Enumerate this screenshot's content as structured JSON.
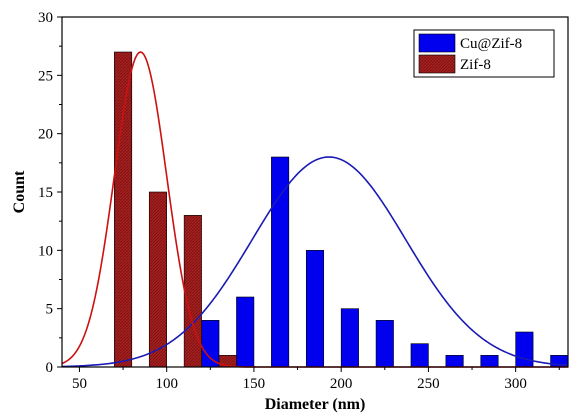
{
  "chart_data": {
    "type": "bar",
    "xlabel": "Diameter (nm)",
    "ylabel": "Count",
    "xlim": [
      40,
      330
    ],
    "ylim": [
      0,
      30
    ],
    "x_ticks": [
      50,
      100,
      150,
      200,
      250,
      300
    ],
    "y_ticks": [
      0,
      5,
      10,
      15,
      20,
      25,
      30
    ],
    "grid": false,
    "legend_position": "top-right",
    "bar_width": 10,
    "series": [
      {
        "name": "Cu@Zif-8",
        "color": "#0000ee",
        "x": [
          125,
          145,
          165,
          185,
          205,
          225,
          245,
          265,
          285,
          305,
          325
        ],
        "values": [
          4,
          6,
          18,
          10,
          5,
          4,
          2,
          1,
          1,
          3,
          1
        ],
        "fit": {
          "type": "gaussian",
          "center": 193,
          "sigma": 44,
          "peak": 18,
          "color": "#1a1ab5"
        }
      },
      {
        "name": "Zif-8",
        "color": "#b22222",
        "x": [
          75,
          95,
          115,
          135
        ],
        "values": [
          27,
          15,
          13,
          1
        ],
        "fit": {
          "type": "gaussian",
          "center": 85,
          "sigma": 15,
          "peak": 27,
          "color": "#cc1111"
        }
      }
    ]
  }
}
